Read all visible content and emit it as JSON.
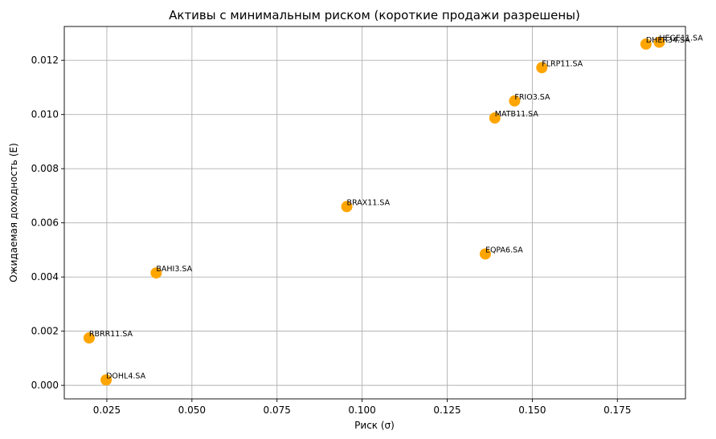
{
  "chart_data": {
    "type": "scatter",
    "title": "Активы с минимальным риском (короткие продажи разрешены)",
    "xlabel": "Риск (σ)",
    "ylabel": "Ожидаемая доходность (E)",
    "xlim": [
      0.0125,
      0.195
    ],
    "ylim": [
      -0.0005,
      0.01325
    ],
    "xticks": [
      0.025,
      0.05,
      0.075,
      0.1,
      0.125,
      0.15,
      0.175
    ],
    "xtick_labels": [
      "0.025",
      "0.050",
      "0.075",
      "0.100",
      "0.125",
      "0.150",
      "0.175"
    ],
    "yticks": [
      0.0,
      0.002,
      0.004,
      0.006,
      0.008,
      0.01,
      0.012
    ],
    "ytick_labels": [
      "0.000",
      "0.002",
      "0.004",
      "0.006",
      "0.008",
      "0.010",
      "0.012"
    ],
    "grid": true,
    "marker_color": "#FFA500",
    "points": [
      {
        "label": "RBRR11.SA",
        "x": 0.0198,
        "y": 0.00175
      },
      {
        "label": "DOHL4.SA",
        "x": 0.0248,
        "y": 0.0002
      },
      {
        "label": "BAHI3.SA",
        "x": 0.0395,
        "y": 0.00415
      },
      {
        "label": "BRAX11.SA",
        "x": 0.0955,
        "y": 0.0066
      },
      {
        "label": "EQPA6.SA",
        "x": 0.1362,
        "y": 0.00485
      },
      {
        "label": "MATB11.SA",
        "x": 0.139,
        "y": 0.00987
      },
      {
        "label": "FRIO3.SA",
        "x": 0.1448,
        "y": 0.0105
      },
      {
        "label": "FLRP11.SA",
        "x": 0.1528,
        "y": 0.01173
      },
      {
        "label": "DHER34.SA",
        "x": 0.1834,
        "y": 0.0126
      },
      {
        "label": "HEGE11.SA",
        "x": 0.1873,
        "y": 0.01267
      }
    ]
  }
}
